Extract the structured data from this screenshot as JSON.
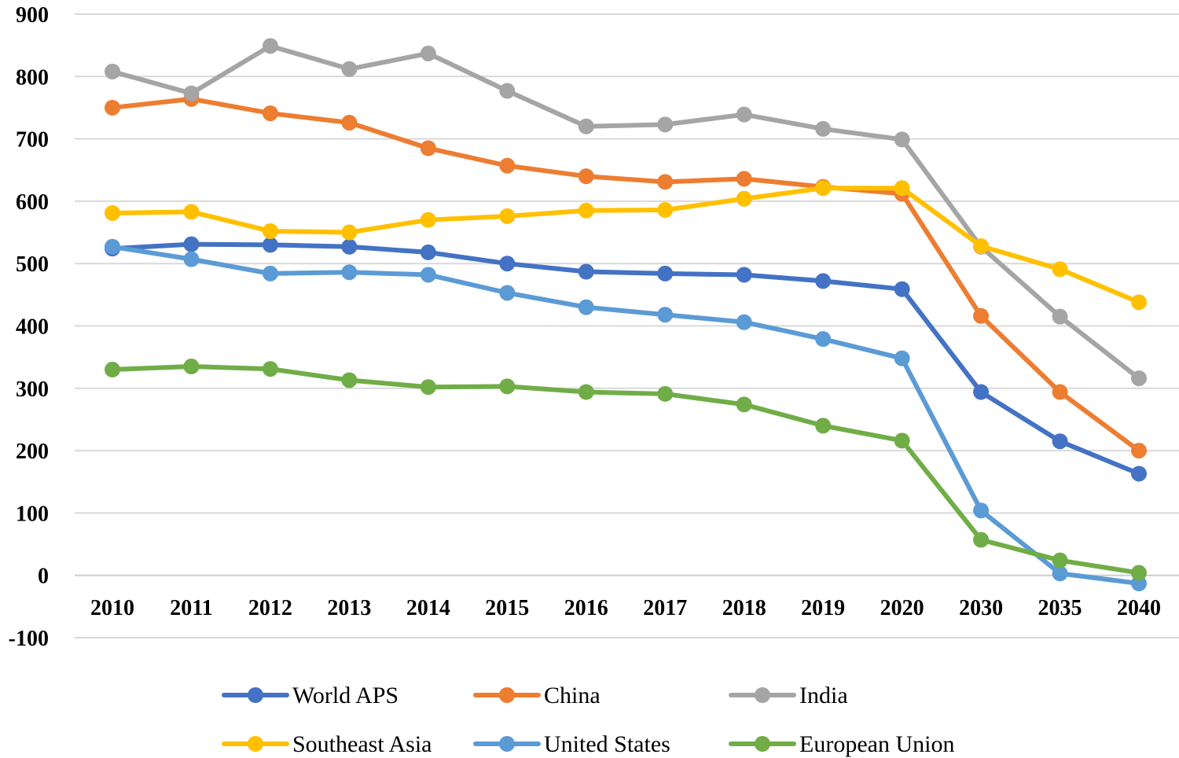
{
  "chart_data": {
    "type": "line",
    "categories": [
      "2010",
      "2011",
      "2012",
      "2013",
      "2014",
      "2015",
      "2016",
      "2017",
      "2018",
      "2019",
      "2020",
      "2030",
      "2035",
      "2040"
    ],
    "y_ticks": [
      "900",
      "800",
      "700",
      "600",
      "500",
      "400",
      "300",
      "200",
      "100",
      "0",
      "-100"
    ],
    "ylim": [
      -100,
      900
    ],
    "grid": true,
    "legend_position": "bottom",
    "series": [
      {
        "name": "World APS",
        "color": "#4472c4",
        "values": [
          524,
          531,
          530,
          527,
          518,
          500,
          487,
          484,
          482,
          472,
          459,
          294,
          215,
          163
        ]
      },
      {
        "name": "China",
        "color": "#ed7d31",
        "values": [
          750,
          764,
          741,
          726,
          685,
          657,
          640,
          631,
          636,
          623,
          612,
          416,
          294,
          200
        ]
      },
      {
        "name": "India",
        "color": "#a5a5a5",
        "values": [
          808,
          773,
          849,
          812,
          837,
          777,
          720,
          723,
          739,
          716,
          699,
          527,
          415,
          316
        ]
      },
      {
        "name": "Southeast Asia",
        "color": "#ffc000",
        "values": [
          581,
          583,
          552,
          550,
          570,
          576,
          585,
          586,
          604,
          621,
          621,
          528,
          491,
          438
        ]
      },
      {
        "name": "United States",
        "color": "#5b9bd5",
        "values": [
          527,
          507,
          484,
          486,
          482,
          453,
          430,
          418,
          406,
          379,
          348,
          104,
          3,
          -13
        ]
      },
      {
        "name": "European Union",
        "color": "#70ad47",
        "values": [
          330,
          335,
          331,
          313,
          302,
          303,
          294,
          291,
          274,
          240,
          216,
          57,
          24,
          4
        ]
      }
    ]
  }
}
